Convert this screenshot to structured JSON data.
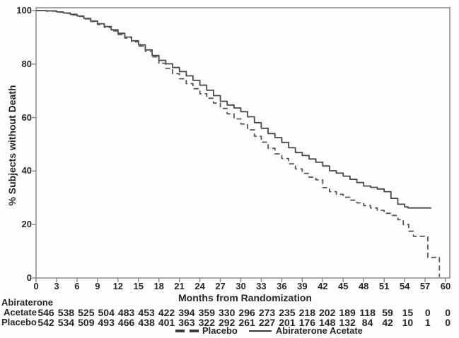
{
  "chart_data": {
    "type": "line",
    "subtype": "kaplan-meier-step",
    "title": "",
    "xlabel": "Months from Randomization",
    "ylabel": "% Subjects without Death",
    "xlim": [
      0,
      60
    ],
    "ylim": [
      0,
      100
    ],
    "x_ticks": [
      0,
      3,
      6,
      9,
      12,
      15,
      18,
      21,
      24,
      27,
      30,
      33,
      36,
      39,
      42,
      45,
      48,
      51,
      54,
      57,
      60
    ],
    "y_ticks": [
      0,
      20,
      40,
      60,
      80,
      100
    ],
    "grid": false,
    "legend_position": "bottom",
    "colors": {
      "curve_solid": "#474747",
      "curve_dashed": "#565656",
      "axis": "#8a8a8a",
      "text": "#262626"
    },
    "legend": [
      {
        "label": "Placebo",
        "style": "dashed"
      },
      {
        "label": "Abiraterone Acetate",
        "style": "solid"
      }
    ],
    "series": [
      {
        "name": "Abiraterone Acetate",
        "line_style": "solid",
        "points": [
          [
            0,
            100
          ],
          [
            1.5,
            99.9
          ],
          [
            3,
            99.5
          ],
          [
            4,
            99.1
          ],
          [
            5,
            98.6
          ],
          [
            6,
            98.0
          ],
          [
            7,
            97.1
          ],
          [
            8,
            96.1
          ],
          [
            9,
            95.1
          ],
          [
            10,
            94.0
          ],
          [
            11,
            92.8
          ],
          [
            12,
            91.5
          ],
          [
            13,
            90.1
          ],
          [
            14,
            88.7
          ],
          [
            15,
            87.2
          ],
          [
            16,
            85.3
          ],
          [
            17,
            83.2
          ],
          [
            18,
            81.4
          ],
          [
            19,
            80.1
          ],
          [
            20,
            78.7
          ],
          [
            21,
            77.2
          ],
          [
            22,
            75.6
          ],
          [
            23,
            73.9
          ],
          [
            24,
            72.1
          ],
          [
            25,
            70.2
          ],
          [
            26,
            68.2
          ],
          [
            27,
            66.1
          ],
          [
            28,
            64.7
          ],
          [
            29,
            63.6
          ],
          [
            30,
            62.2
          ],
          [
            31,
            60.3
          ],
          [
            32,
            58.1
          ],
          [
            33,
            56.0
          ],
          [
            34,
            54.0
          ],
          [
            35,
            52.5
          ],
          [
            36,
            50.7
          ],
          [
            37,
            48.7
          ],
          [
            38,
            46.9
          ],
          [
            39,
            45.8
          ],
          [
            40,
            44.5
          ],
          [
            41,
            43.3
          ],
          [
            42,
            41.9
          ],
          [
            43,
            40.1
          ],
          [
            44,
            39.2
          ],
          [
            45,
            38.1
          ],
          [
            46,
            36.9
          ],
          [
            47,
            35.7
          ],
          [
            48,
            34.4
          ],
          [
            49,
            33.9
          ],
          [
            50,
            33.3
          ],
          [
            51,
            32.3
          ],
          [
            52,
            29.8
          ],
          [
            53,
            27.6
          ],
          [
            54,
            26.6
          ],
          [
            54.5,
            26.2
          ],
          [
            57.9,
            26.2
          ]
        ]
      },
      {
        "name": "Placebo",
        "line_style": "dashed",
        "points": [
          [
            0,
            100
          ],
          [
            1.5,
            99.8
          ],
          [
            3,
            99.4
          ],
          [
            4,
            99.0
          ],
          [
            5,
            98.4
          ],
          [
            6,
            97.8
          ],
          [
            7,
            96.9
          ],
          [
            8,
            95.9
          ],
          [
            9,
            94.8
          ],
          [
            10,
            93.7
          ],
          [
            11,
            92.4
          ],
          [
            12,
            91.0
          ],
          [
            13,
            89.7
          ],
          [
            14,
            88.3
          ],
          [
            15,
            86.7
          ],
          [
            16,
            84.8
          ],
          [
            17,
            82.7
          ],
          [
            18,
            80.3
          ],
          [
            19,
            78.4
          ],
          [
            20,
            76.4
          ],
          [
            21,
            74.5
          ],
          [
            22,
            72.7
          ],
          [
            23,
            70.8
          ],
          [
            24,
            68.9
          ],
          [
            25,
            67.2
          ],
          [
            26,
            65.4
          ],
          [
            27,
            63.4
          ],
          [
            28,
            61.4
          ],
          [
            29,
            59.5
          ],
          [
            30,
            57.6
          ],
          [
            31,
            55.4
          ],
          [
            32,
            53.0
          ],
          [
            33,
            50.8
          ],
          [
            34,
            48.5
          ],
          [
            35,
            46.4
          ],
          [
            36,
            44.7
          ],
          [
            37,
            42.7
          ],
          [
            38,
            40.8
          ],
          [
            39,
            39.1
          ],
          [
            40,
            37.7
          ],
          [
            41,
            36.7
          ],
          [
            42,
            33.8
          ],
          [
            43,
            32.3
          ],
          [
            44,
            31.3
          ],
          [
            45,
            30.2
          ],
          [
            46,
            29.1
          ],
          [
            47,
            28.1
          ],
          [
            48,
            27.1
          ],
          [
            49,
            26.2
          ],
          [
            50,
            25.3
          ],
          [
            51,
            24.2
          ],
          [
            52,
            23.4
          ],
          [
            53,
            21.8
          ],
          [
            53.8,
            20.0
          ],
          [
            54.6,
            17.5
          ],
          [
            55.3,
            15.6
          ],
          [
            57.4,
            7.7
          ],
          [
            58.9,
            7.7
          ],
          [
            59.1,
            0.4
          ]
        ]
      }
    ],
    "at_risk_table": {
      "group_header": "Abiraterone",
      "time_points": [
        0,
        3,
        6,
        9,
        12,
        15,
        18,
        21,
        24,
        27,
        30,
        33,
        36,
        39,
        42,
        45,
        48,
        51,
        54,
        57,
        60
      ],
      "rows": [
        {
          "label": "Acetate",
          "values": [
            546,
            538,
            525,
            504,
            483,
            453,
            422,
            394,
            359,
            330,
            296,
            273,
            235,
            218,
            202,
            189,
            118,
            59,
            15,
            0,
            0
          ]
        },
        {
          "label": "Placebo",
          "values": [
            542,
            534,
            509,
            493,
            466,
            438,
            401,
            363,
            322,
            292,
            261,
            227,
            201,
            176,
            148,
            132,
            84,
            42,
            10,
            1,
            0
          ]
        }
      ]
    }
  }
}
